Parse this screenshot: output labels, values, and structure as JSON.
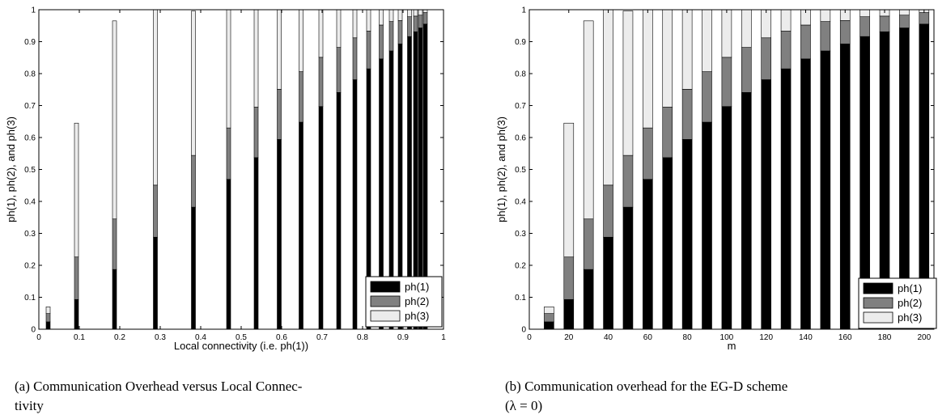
{
  "chart_data": [
    {
      "id": "a",
      "type": "bar",
      "stacked": true,
      "xlabel": "Local connectivity (i.e. ph(1))",
      "ylabel": "ph(1), ph(2), and ph(3)",
      "xlim": [
        0,
        1
      ],
      "ylim": [
        0,
        1
      ],
      "xticks": [
        "0",
        "0.1",
        "0.2",
        "0.3",
        "0.4",
        "0.5",
        "0.6",
        "0.7",
        "0.8",
        "0.9",
        "1"
      ],
      "yticks": [
        "0",
        "0.1",
        "0.2",
        "0.3",
        "0.4",
        "0.5",
        "0.6",
        "0.7",
        "0.8",
        "0.9",
        "1"
      ],
      "legend_position": "bottom-right",
      "x": [
        0.023,
        0.093,
        0.187,
        0.288,
        0.382,
        0.469,
        0.537,
        0.594,
        0.648,
        0.697,
        0.741,
        0.781,
        0.815,
        0.846,
        0.871,
        0.893,
        0.916,
        0.931,
        0.943,
        0.955
      ],
      "series": [
        {
          "name": "ph(1)",
          "color": "#000000",
          "values": [
            0.023,
            0.093,
            0.187,
            0.288,
            0.382,
            0.469,
            0.537,
            0.594,
            0.648,
            0.697,
            0.741,
            0.781,
            0.815,
            0.846,
            0.871,
            0.893,
            0.916,
            0.931,
            0.943,
            0.955
          ]
        },
        {
          "name": "ph(2)",
          "color": "#808080",
          "values": [
            0.026,
            0.133,
            0.158,
            0.163,
            0.162,
            0.161,
            0.158,
            0.157,
            0.158,
            0.154,
            0.141,
            0.131,
            0.118,
            0.106,
            0.092,
            0.073,
            0.062,
            0.049,
            0.04,
            0.036
          ]
        },
        {
          "name": "ph(3)",
          "color": "#ececec",
          "values": [
            0.021,
            0.419,
            0.62,
            0.549,
            0.452,
            0.37,
            0.305,
            0.249,
            0.194,
            0.149,
            0.118,
            0.088,
            0.067,
            0.048,
            0.037,
            0.034,
            0.022,
            0.02,
            0.017,
            0.009
          ]
        }
      ]
    },
    {
      "id": "b",
      "type": "bar",
      "stacked": true,
      "xlabel": "m",
      "ylabel": "ph(1), ph(2), and ph(3)",
      "xlim": [
        0,
        205
      ],
      "ylim": [
        0,
        1
      ],
      "xticks": [
        "0",
        "20",
        "40",
        "60",
        "80",
        "100",
        "120",
        "140",
        "160",
        "180",
        "200"
      ],
      "yticks": [
        "0",
        "0.1",
        "0.2",
        "0.3",
        "0.4",
        "0.5",
        "0.6",
        "0.7",
        "0.8",
        "0.9",
        "1"
      ],
      "legend_position": "bottom-right",
      "categories": [
        10,
        20,
        30,
        40,
        50,
        60,
        70,
        80,
        90,
        100,
        110,
        120,
        130,
        140,
        150,
        160,
        170,
        180,
        190,
        200
      ],
      "series": [
        {
          "name": "ph(1)",
          "color": "#000000",
          "values": [
            0.023,
            0.093,
            0.187,
            0.288,
            0.382,
            0.469,
            0.537,
            0.594,
            0.648,
            0.697,
            0.741,
            0.781,
            0.815,
            0.846,
            0.871,
            0.893,
            0.916,
            0.931,
            0.943,
            0.955
          ]
        },
        {
          "name": "ph(2)",
          "color": "#808080",
          "values": [
            0.026,
            0.133,
            0.158,
            0.163,
            0.162,
            0.161,
            0.158,
            0.157,
            0.158,
            0.154,
            0.141,
            0.131,
            0.118,
            0.106,
            0.092,
            0.073,
            0.062,
            0.049,
            0.04,
            0.036
          ]
        },
        {
          "name": "ph(3)",
          "color": "#ececec",
          "values": [
            0.021,
            0.419,
            0.62,
            0.549,
            0.452,
            0.37,
            0.305,
            0.249,
            0.194,
            0.149,
            0.118,
            0.088,
            0.067,
            0.048,
            0.037,
            0.034,
            0.022,
            0.02,
            0.017,
            0.009
          ]
        }
      ]
    }
  ],
  "captions": {
    "a": "(a) Communication Overhead versus Local Connec-\ntivity",
    "b": "(b) Communication overhead for the EG-D scheme\n(λ = 0)"
  }
}
